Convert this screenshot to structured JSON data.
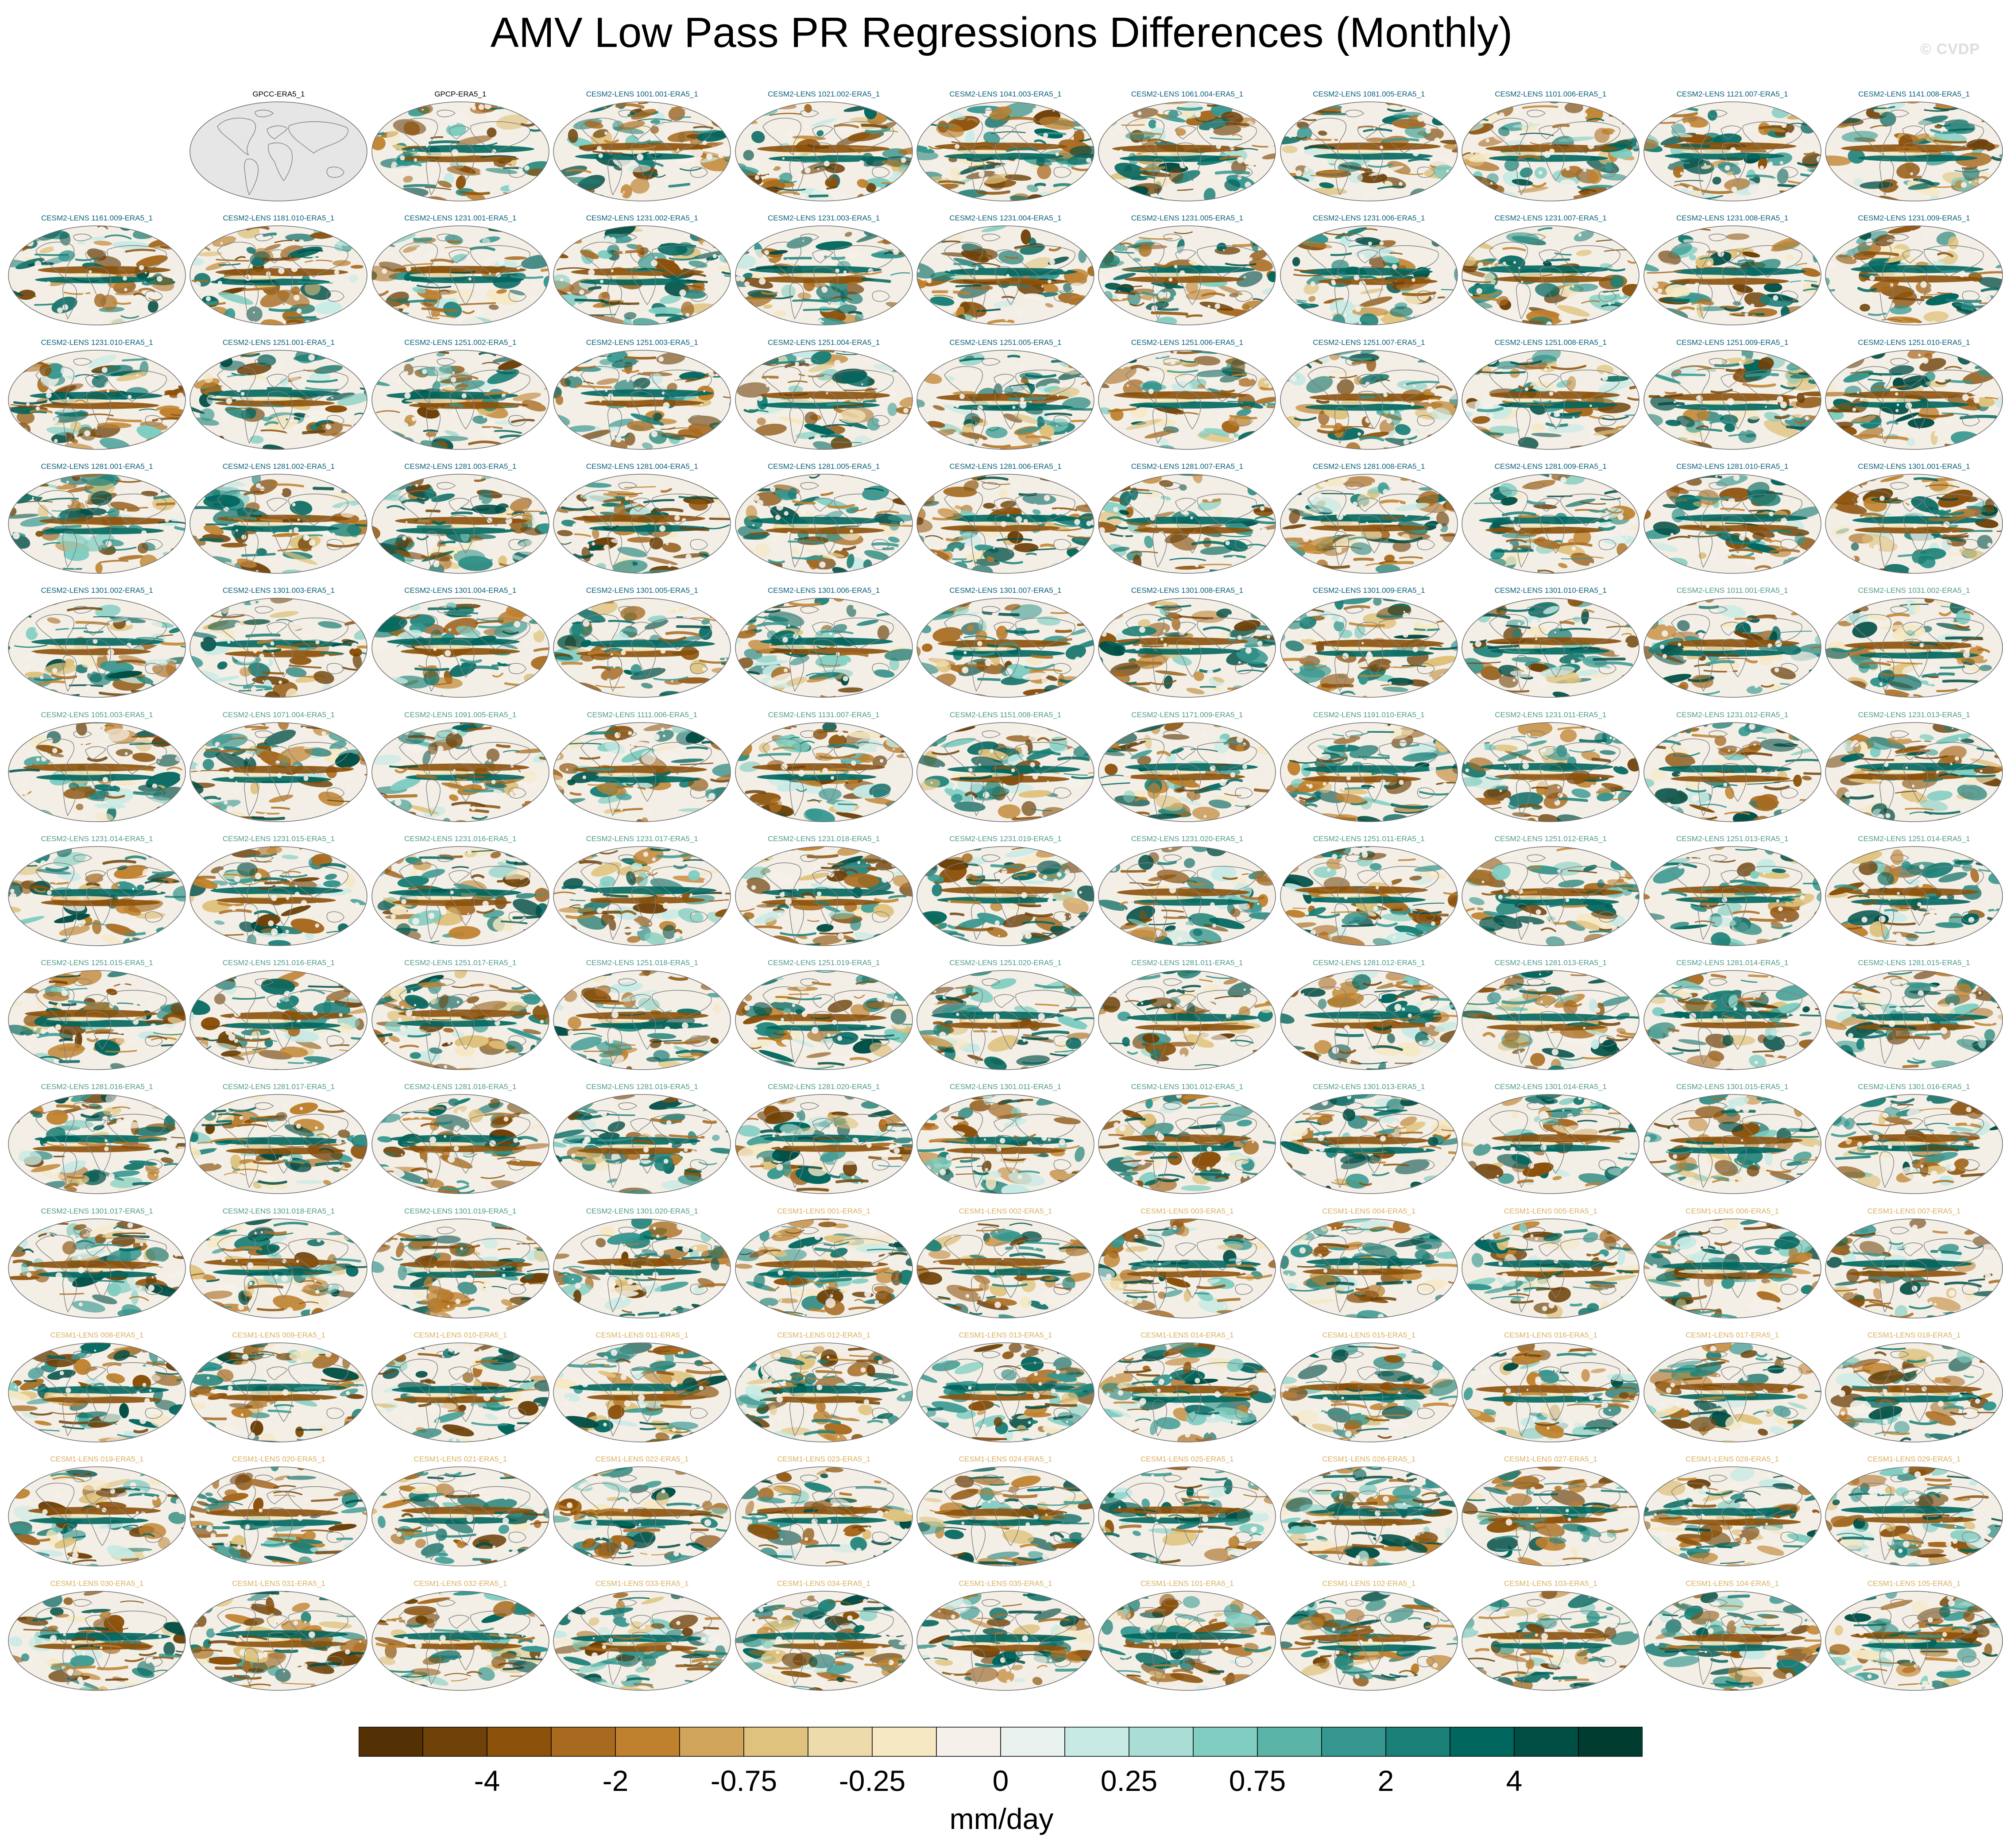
{
  "title": "AMV Low Pass PR Regressions Differences (Monthly)",
  "watermark": "© CVDP",
  "chart_data": {
    "type": "heatmap",
    "title": "AMV Low Pass PR Regressions Differences (Monthly)",
    "grid_rows": 14,
    "grid_cols": 11,
    "first_row_empty_slots": 1,
    "panels": [
      {
        "label": "GPCC-ERA5_1",
        "color": "#000000",
        "style": "reference"
      },
      {
        "label": "GPCP-ERA5_1",
        "color": "#000000",
        "style": "diff"
      },
      {
        "label": "CESM2-LENS 1001.001-ERA5_1",
        "color": "#0b5f78",
        "style": "diff"
      },
      {
        "label": "CESM2-LENS 1021.002-ERA5_1",
        "color": "#0b5f78",
        "style": "diff"
      },
      {
        "label": "CESM2-LENS 1041.003-ERA5_1",
        "color": "#0b5f78",
        "style": "diff"
      },
      {
        "label": "CESM2-LENS 1061.004-ERA5_1",
        "color": "#0b5f78",
        "style": "diff"
      },
      {
        "label": "CESM2-LENS 1081.005-ERA5_1",
        "color": "#0b5f78",
        "style": "diff"
      },
      {
        "label": "CESM2-LENS 1101.006-ERA5_1",
        "color": "#0b5f78",
        "style": "diff"
      },
      {
        "label": "CESM2-LENS 1121.007-ERA5_1",
        "color": "#0b5f78",
        "style": "diff"
      },
      {
        "label": "CESM2-LENS 1141.008-ERA5_1",
        "color": "#0b5f78",
        "style": "diff"
      },
      {
        "label": "CESM2-LENS 1161.009-ERA5_1",
        "color": "#0b5f78",
        "style": "diff"
      },
      {
        "label": "CESM2-LENS 1181.010-ERA5_1",
        "color": "#0b5f78",
        "style": "diff"
      },
      {
        "label": "CESM2-LENS 1231.001-ERA5_1",
        "color": "#0b5f78",
        "style": "diff"
      },
      {
        "label": "CESM2-LENS 1231.002-ERA5_1",
        "color": "#0b5f78",
        "style": "diff"
      },
      {
        "label": "CESM2-LENS 1231.003-ERA5_1",
        "color": "#0b5f78",
        "style": "diff"
      },
      {
        "label": "CESM2-LENS 1231.004-ERA5_1",
        "color": "#0b5f78",
        "style": "diff"
      },
      {
        "label": "CESM2-LENS 1231.005-ERA5_1",
        "color": "#0b5f78",
        "style": "diff"
      },
      {
        "label": "CESM2-LENS 1231.006-ERA5_1",
        "color": "#0b5f78",
        "style": "diff"
      },
      {
        "label": "CESM2-LENS 1231.007-ERA5_1",
        "color": "#0b5f78",
        "style": "diff"
      },
      {
        "label": "CESM2-LENS 1231.008-ERA5_1",
        "color": "#0b5f78",
        "style": "diff"
      },
      {
        "label": "CESM2-LENS 1231.009-ERA5_1",
        "color": "#0b5f78",
        "style": "diff"
      },
      {
        "label": "CESM2-LENS 1231.010-ERA5_1",
        "color": "#0b5f78",
        "style": "diff"
      },
      {
        "label": "CESM2-LENS 1251.001-ERA5_1",
        "color": "#0b5f78",
        "style": "diff"
      },
      {
        "label": "CESM2-LENS 1251.002-ERA5_1",
        "color": "#0b5f78",
        "style": "diff"
      },
      {
        "label": "CESM2-LENS 1251.003-ERA5_1",
        "color": "#0b5f78",
        "style": "diff"
      },
      {
        "label": "CESM2-LENS 1251.004-ERA5_1",
        "color": "#0b5f78",
        "style": "diff"
      },
      {
        "label": "CESM2-LENS 1251.005-ERA5_1",
        "color": "#0b5f78",
        "style": "diff"
      },
      {
        "label": "CESM2-LENS 1251.006-ERA5_1",
        "color": "#0b5f78",
        "style": "diff"
      },
      {
        "label": "CESM2-LENS 1251.007-ERA5_1",
        "color": "#0b5f78",
        "style": "diff"
      },
      {
        "label": "CESM2-LENS 1251.008-ERA5_1",
        "color": "#0b5f78",
        "style": "diff"
      },
      {
        "label": "CESM2-LENS 1251.009-ERA5_1",
        "color": "#0b5f78",
        "style": "diff"
      },
      {
        "label": "CESM2-LENS 1251.010-ERA5_1",
        "color": "#0b5f78",
        "style": "diff"
      },
      {
        "label": "CESM2-LENS 1281.001-ERA5_1",
        "color": "#0b5f78",
        "style": "diff"
      },
      {
        "label": "CESM2-LENS 1281.002-ERA5_1",
        "color": "#0b5f78",
        "style": "diff"
      },
      {
        "label": "CESM2-LENS 1281.003-ERA5_1",
        "color": "#0b5f78",
        "style": "diff"
      },
      {
        "label": "CESM2-LENS 1281.004-ERA5_1",
        "color": "#0b5f78",
        "style": "diff"
      },
      {
        "label": "CESM2-LENS 1281.005-ERA5_1",
        "color": "#0b5f78",
        "style": "diff"
      },
      {
        "label": "CESM2-LENS 1281.006-ERA5_1",
        "color": "#0b5f78",
        "style": "diff"
      },
      {
        "label": "CESM2-LENS 1281.007-ERA5_1",
        "color": "#0b5f78",
        "style": "diff"
      },
      {
        "label": "CESM2-LENS 1281.008-ERA5_1",
        "color": "#0b5f78",
        "style": "diff"
      },
      {
        "label": "CESM2-LENS 1281.009-ERA5_1",
        "color": "#0b5f78",
        "style": "diff"
      },
      {
        "label": "CESM2-LENS 1281.010-ERA5_1",
        "color": "#0b5f78",
        "style": "diff"
      },
      {
        "label": "CESM2-LENS 1301.001-ERA5_1",
        "color": "#0b5f78",
        "style": "diff"
      },
      {
        "label": "CESM2-LENS 1301.002-ERA5_1",
        "color": "#0b5f78",
        "style": "diff"
      },
      {
        "label": "CESM2-LENS 1301.003-ERA5_1",
        "color": "#0b5f78",
        "style": "diff"
      },
      {
        "label": "CESM2-LENS 1301.004-ERA5_1",
        "color": "#0b5f78",
        "style": "diff"
      },
      {
        "label": "CESM2-LENS 1301.005-ERA5_1",
        "color": "#0b5f78",
        "style": "diff"
      },
      {
        "label": "CESM2-LENS 1301.006-ERA5_1",
        "color": "#0b5f78",
        "style": "diff"
      },
      {
        "label": "CESM2-LENS 1301.007-ERA5_1",
        "color": "#0b5f78",
        "style": "diff"
      },
      {
        "label": "CESM2-LENS 1301.008-ERA5_1",
        "color": "#0b5f78",
        "style": "diff"
      },
      {
        "label": "CESM2-LENS 1301.009-ERA5_1",
        "color": "#0b5f78",
        "style": "diff"
      },
      {
        "label": "CESM2-LENS 1301.010-ERA5_1",
        "color": "#0b5f78",
        "style": "diff"
      },
      {
        "label": "CESM2-LENS 1011.001-ERA5_1",
        "color": "#4f9a8c",
        "style": "diff"
      },
      {
        "label": "CESM2-LENS 1031.002-ERA5_1",
        "color": "#4f9a8c",
        "style": "diff"
      },
      {
        "label": "CESM2-LENS 1051.003-ERA5_1",
        "color": "#4f9a8c",
        "style": "diff"
      },
      {
        "label": "CESM2-LENS 1071.004-ERA5_1",
        "color": "#4f9a8c",
        "style": "diff"
      },
      {
        "label": "CESM2-LENS 1091.005-ERA5_1",
        "color": "#4f9a8c",
        "style": "diff"
      },
      {
        "label": "CESM2-LENS 1111.006-ERA5_1",
        "color": "#4f9a8c",
        "style": "diff"
      },
      {
        "label": "CESM2-LENS 1131.007-ERA5_1",
        "color": "#4f9a8c",
        "style": "diff"
      },
      {
        "label": "CESM2-LENS 1151.008-ERA5_1",
        "color": "#4f9a8c",
        "style": "diff"
      },
      {
        "label": "CESM2-LENS 1171.009-ERA5_1",
        "color": "#4f9a8c",
        "style": "diff"
      },
      {
        "label": "CESM2-LENS 1191.010-ERA5_1",
        "color": "#4f9a8c",
        "style": "diff"
      },
      {
        "label": "CESM2-LENS 1231.011-ERA5_1",
        "color": "#4f9a8c",
        "style": "diff"
      },
      {
        "label": "CESM2-LENS 1231.012-ERA5_1",
        "color": "#4f9a8c",
        "style": "diff"
      },
      {
        "label": "CESM2-LENS 1231.013-ERA5_1",
        "color": "#4f9a8c",
        "style": "diff"
      },
      {
        "label": "CESM2-LENS 1231.014-ERA5_1",
        "color": "#4f9a8c",
        "style": "diff"
      },
      {
        "label": "CESM2-LENS 1231.015-ERA5_1",
        "color": "#4f9a8c",
        "style": "diff"
      },
      {
        "label": "CESM2-LENS 1231.016-ERA5_1",
        "color": "#4f9a8c",
        "style": "diff"
      },
      {
        "label": "CESM2-LENS 1231.017-ERA5_1",
        "color": "#4f9a8c",
        "style": "diff"
      },
      {
        "label": "CESM2-LENS 1231.018-ERA5_1",
        "color": "#4f9a8c",
        "style": "diff"
      },
      {
        "label": "CESM2-LENS 1231.019-ERA5_1",
        "color": "#4f9a8c",
        "style": "diff"
      },
      {
        "label": "CESM2-LENS 1231.020-ERA5_1",
        "color": "#4f9a8c",
        "style": "diff"
      },
      {
        "label": "CESM2-LENS 1251.011-ERA5_1",
        "color": "#4f9a8c",
        "style": "diff"
      },
      {
        "label": "CESM2-LENS 1251.012-ERA5_1",
        "color": "#4f9a8c",
        "style": "diff"
      },
      {
        "label": "CESM2-LENS 1251.013-ERA5_1",
        "color": "#4f9a8c",
        "style": "diff"
      },
      {
        "label": "CESM2-LENS 1251.014-ERA5_1",
        "color": "#4f9a8c",
        "style": "diff"
      },
      {
        "label": "CESM2-LENS 1251.015-ERA5_1",
        "color": "#4f9a8c",
        "style": "diff"
      },
      {
        "label": "CESM2-LENS 1251.016-ERA5_1",
        "color": "#4f9a8c",
        "style": "diff"
      },
      {
        "label": "CESM2-LENS 1251.017-ERA5_1",
        "color": "#4f9a8c",
        "style": "diff"
      },
      {
        "label": "CESM2-LENS 1251.018-ERA5_1",
        "color": "#4f9a8c",
        "style": "diff"
      },
      {
        "label": "CESM2-LENS 1251.019-ERA5_1",
        "color": "#4f9a8c",
        "style": "diff"
      },
      {
        "label": "CESM2-LENS 1251.020-ERA5_1",
        "color": "#4f9a8c",
        "style": "diff"
      },
      {
        "label": "CESM2-LENS 1281.011-ERA5_1",
        "color": "#4f9a8c",
        "style": "diff"
      },
      {
        "label": "CESM2-LENS 1281.012-ERA5_1",
        "color": "#4f9a8c",
        "style": "diff"
      },
      {
        "label": "CESM2-LENS 1281.013-ERA5_1",
        "color": "#4f9a8c",
        "style": "diff"
      },
      {
        "label": "CESM2-LENS 1281.014-ERA5_1",
        "color": "#4f9a8c",
        "style": "diff"
      },
      {
        "label": "CESM2-LENS 1281.015-ERA5_1",
        "color": "#4f9a8c",
        "style": "diff"
      },
      {
        "label": "CESM2-LENS 1281.016-ERA5_1",
        "color": "#4f9a8c",
        "style": "diff"
      },
      {
        "label": "CESM2-LENS 1281.017-ERA5_1",
        "color": "#4f9a8c",
        "style": "diff"
      },
      {
        "label": "CESM2-LENS 1281.018-ERA5_1",
        "color": "#4f9a8c",
        "style": "diff"
      },
      {
        "label": "CESM2-LENS 1281.019-ERA5_1",
        "color": "#4f9a8c",
        "style": "diff"
      },
      {
        "label": "CESM2-LENS 1281.020-ERA5_1",
        "color": "#4f9a8c",
        "style": "diff"
      },
      {
        "label": "CESM2-LENS 1301.011-ERA5_1",
        "color": "#4f9a8c",
        "style": "diff"
      },
      {
        "label": "CESM2-LENS 1301.012-ERA5_1",
        "color": "#4f9a8c",
        "style": "diff"
      },
      {
        "label": "CESM2-LENS 1301.013-ERA5_1",
        "color": "#4f9a8c",
        "style": "diff"
      },
      {
        "label": "CESM2-LENS 1301.014-ERA5_1",
        "color": "#4f9a8c",
        "style": "diff"
      },
      {
        "label": "CESM2-LENS 1301.015-ERA5_1",
        "color": "#4f9a8c",
        "style": "diff"
      },
      {
        "label": "CESM2-LENS 1301.016-ERA5_1",
        "color": "#4f9a8c",
        "style": "diff"
      },
      {
        "label": "CESM2-LENS 1301.017-ERA5_1",
        "color": "#4f9a8c",
        "style": "diff"
      },
      {
        "label": "CESM2-LENS 1301.018-ERA5_1",
        "color": "#4f9a8c",
        "style": "diff"
      },
      {
        "label": "CESM2-LENS 1301.019-ERA5_1",
        "color": "#4f9a8c",
        "style": "diff"
      },
      {
        "label": "CESM2-LENS 1301.020-ERA5_1",
        "color": "#4f9a8c",
        "style": "diff"
      },
      {
        "label": "CESM1-LENS 001-ERA5_1",
        "color": "#d9b060",
        "style": "diff"
      },
      {
        "label": "CESM1-LENS 002-ERA5_1",
        "color": "#d9b060",
        "style": "diff"
      },
      {
        "label": "CESM1-LENS 003-ERA5_1",
        "color": "#d9b060",
        "style": "diff"
      },
      {
        "label": "CESM1-LENS 004-ERA5_1",
        "color": "#d9b060",
        "style": "diff"
      },
      {
        "label": "CESM1-LENS 005-ERA5_1",
        "color": "#d9b060",
        "style": "diff"
      },
      {
        "label": "CESM1-LENS 006-ERA5_1",
        "color": "#d9b060",
        "style": "diff"
      },
      {
        "label": "CESM1-LENS 007-ERA5_1",
        "color": "#d9b060",
        "style": "diff"
      },
      {
        "label": "CESM1-LENS 008-ERA5_1",
        "color": "#d9b060",
        "style": "diff"
      },
      {
        "label": "CESM1-LENS 009-ERA5_1",
        "color": "#d9b060",
        "style": "diff"
      },
      {
        "label": "CESM1-LENS 010-ERA5_1",
        "color": "#d9b060",
        "style": "diff"
      },
      {
        "label": "CESM1-LENS 011-ERA5_1",
        "color": "#d9b060",
        "style": "diff"
      },
      {
        "label": "CESM1-LENS 012-ERA5_1",
        "color": "#d9b060",
        "style": "diff"
      },
      {
        "label": "CESM1-LENS 013-ERA5_1",
        "color": "#d9b060",
        "style": "diff"
      },
      {
        "label": "CESM1-LENS 014-ERA5_1",
        "color": "#d9b060",
        "style": "diff"
      },
      {
        "label": "CESM1-LENS 015-ERA5_1",
        "color": "#d9b060",
        "style": "diff"
      },
      {
        "label": "CESM1-LENS 016-ERA5_1",
        "color": "#d9b060",
        "style": "diff"
      },
      {
        "label": "CESM1-LENS 017-ERA5_1",
        "color": "#d9b060",
        "style": "diff"
      },
      {
        "label": "CESM1-LENS 018-ERA5_1",
        "color": "#d9b060",
        "style": "diff"
      },
      {
        "label": "CESM1-LENS 019-ERA5_1",
        "color": "#d9b060",
        "style": "diff"
      },
      {
        "label": "CESM1-LENS 020-ERA5_1",
        "color": "#d9b060",
        "style": "diff"
      },
      {
        "label": "CESM1-LENS 021-ERA5_1",
        "color": "#d9b060",
        "style": "diff"
      },
      {
        "label": "CESM1-LENS 022-ERA5_1",
        "color": "#d9b060",
        "style": "diff"
      },
      {
        "label": "CESM1-LENS 023-ERA5_1",
        "color": "#d9b060",
        "style": "diff"
      },
      {
        "label": "CESM1-LENS 024-ERA5_1",
        "color": "#d9b060",
        "style": "diff"
      },
      {
        "label": "CESM1-LENS 025-ERA5_1",
        "color": "#d9b060",
        "style": "diff"
      },
      {
        "label": "CESM1-LENS 026-ERA5_1",
        "color": "#d9b060",
        "style": "diff"
      },
      {
        "label": "CESM1-LENS 027-ERA5_1",
        "color": "#d9b060",
        "style": "diff"
      },
      {
        "label": "CESM1-LENS 028-ERA5_1",
        "color": "#d9b060",
        "style": "diff"
      },
      {
        "label": "CESM1-LENS 029-ERA5_1",
        "color": "#d9b060",
        "style": "diff"
      },
      {
        "label": "CESM1-LENS 030-ERA5_1",
        "color": "#d9b060",
        "style": "diff"
      },
      {
        "label": "CESM1-LENS 031-ERA5_1",
        "color": "#d9b060",
        "style": "diff"
      },
      {
        "label": "CESM1-LENS 032-ERA5_1",
        "color": "#d9b060",
        "style": "diff"
      },
      {
        "label": "CESM1-LENS 033-ERA5_1",
        "color": "#d9b060",
        "style": "diff"
      },
      {
        "label": "CESM1-LENS 034-ERA5_1",
        "color": "#d9b060",
        "style": "diff"
      },
      {
        "label": "CESM1-LENS 035-ERA5_1",
        "color": "#d9b060",
        "style": "diff"
      },
      {
        "label": "CESM1-LENS 101-ERA5_1",
        "color": "#d9b060",
        "style": "diff"
      },
      {
        "label": "CESM1-LENS 102-ERA5_1",
        "color": "#d9b060",
        "style": "diff"
      },
      {
        "label": "CESM1-LENS 103-ERA5_1",
        "color": "#d9b060",
        "style": "diff"
      },
      {
        "label": "CESM1-LENS 104-ERA5_1",
        "color": "#d9b060",
        "style": "diff"
      },
      {
        "label": "CESM1-LENS 105-ERA5_1",
        "color": "#d9b060",
        "style": "diff"
      }
    ],
    "colorbar": {
      "units": "mm/day",
      "labels": [
        "-4",
        "-2",
        "-0.75",
        "-0.25",
        "0",
        "0.25",
        "0.75",
        "2",
        "4"
      ],
      "label_boxes": [
        2,
        4,
        6,
        8,
        10,
        12,
        14,
        16,
        18
      ],
      "colors": [
        "#543005",
        "#6f420a",
        "#8c510a",
        "#a86a1f",
        "#bf812d",
        "#d2a55c",
        "#dfc27d",
        "#eddbac",
        "#f6e8c3",
        "#f5f1ea",
        "#e9f2ef",
        "#c7eae5",
        "#a9ddd5",
        "#80cdc1",
        "#5ab4a7",
        "#35978f",
        "#1a7f76",
        "#01665e",
        "#014e45",
        "#003c30"
      ]
    },
    "palette": {
      "brown": [
        "#6f420a",
        "#8c510a",
        "#a86a1f",
        "#bf812d"
      ],
      "teal": [
        "#35978f",
        "#1a7f76",
        "#01665e",
        "#014e45"
      ],
      "light": [
        "#f6e8c3",
        "#f5f1ea",
        "#c7eae5",
        "#dfc27d",
        "#80cdc1"
      ],
      "land_outline": "#7f7f7f",
      "reference_fill": "#e6e6e6"
    }
  }
}
